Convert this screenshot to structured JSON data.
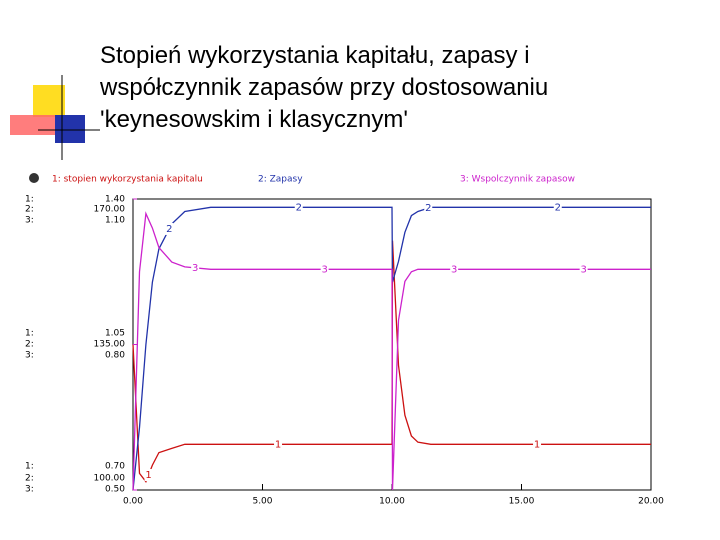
{
  "chart_data": {
    "type": "line",
    "title": [
      "Stopień wykorzystania kapitału, zapasy i",
      "współczynnik zapasów przy dostosowaniu",
      "'keynesowskim i klasycznym'"
    ],
    "axis_keys": [
      "1:",
      "2:",
      "3:"
    ],
    "x": [
      0,
      0.25,
      0.5,
      0.75,
      1,
      1.5,
      2,
      3,
      5,
      10,
      10.02,
      10.25,
      10.5,
      10.75,
      11,
      11.5,
      12,
      15,
      20
    ],
    "xlim": [
      0,
      20
    ],
    "xticks": [
      {
        "value": 0,
        "label": "0.00"
      },
      {
        "value": 5,
        "label": "5.00"
      },
      {
        "value": 10,
        "label": "10.00"
      },
      {
        "value": 15,
        "label": "15.00"
      },
      {
        "value": 20,
        "label": "20.00"
      }
    ],
    "series": [
      {
        "name": "1: stopien wykorzystania kapitalu",
        "marker": "1",
        "color": "#cc1111",
        "ylim": [
          0.7,
          1.4
        ],
        "yticks": [
          {
            "value": 0.7,
            "label": "0.70"
          },
          1.05,
          {
            "value": 1.4,
            "label": "1.40"
          }
        ],
        "values": [
          1.05,
          0.74,
          0.72,
          0.76,
          0.79,
          0.8,
          0.81,
          0.81,
          0.81,
          0.81,
          1.3,
          1.0,
          0.88,
          0.83,
          0.815,
          0.81,
          0.81,
          0.81,
          0.81
        ]
      },
      {
        "name": "2: Zapasy",
        "marker": "2",
        "color": "#2233aa",
        "ylim": [
          100,
          170
        ],
        "yticks": [
          {
            "value": 100,
            "label": "100.00"
          },
          {
            "value": 135,
            "label": "135.00"
          },
          {
            "value": 170,
            "label": "170.00"
          }
        ],
        "values": [
          100,
          115,
          135,
          150,
          158,
          164,
          167,
          168,
          168,
          168,
          150,
          155,
          162,
          166,
          167,
          168,
          168,
          168,
          168
        ]
      },
      {
        "name": "3: Wspolczynnik zapasow",
        "marker": "3",
        "color": "#cc22cc",
        "ylim": [
          0.5,
          1.1
        ],
        "yticks": [
          {
            "value": 0.5,
            "label": "0.50"
          },
          {
            "value": 0.8,
            "label": "0.80"
          },
          {
            "value": 1.1,
            "label": "1.10"
          }
        ],
        "values": [
          0.5,
          0.95,
          1.07,
          1.04,
          1.0,
          0.97,
          0.96,
          0.955,
          0.955,
          0.955,
          0.5,
          0.85,
          0.93,
          0.95,
          0.955,
          0.955,
          0.955,
          0.955,
          0.955
        ]
      }
    ]
  }
}
